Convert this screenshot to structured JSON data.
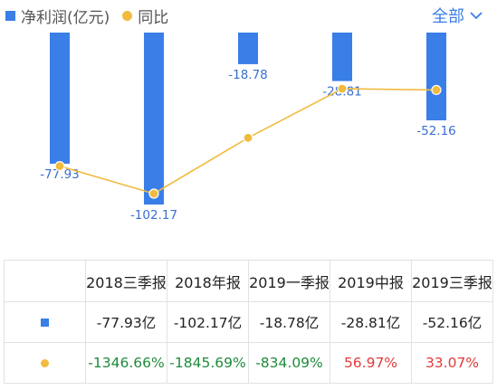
{
  "legend": {
    "net_profit": "净利润(亿元)",
    "yoy": "同比"
  },
  "filter": {
    "label": "全部"
  },
  "colors": {
    "bar": "#3a7ee8",
    "line": "#f1bb3f",
    "negative": "#1f8a3a",
    "positive": "#e03b3b"
  },
  "chart_data": {
    "type": "bar",
    "categories": [
      "2018三季报",
      "2018年报",
      "2019一季报",
      "2019中报",
      "2019三季报"
    ],
    "series": [
      {
        "name": "净利润(亿元)",
        "type": "bar",
        "values": [
          -77.93,
          -102.17,
          -18.78,
          -28.81,
          -52.16
        ]
      },
      {
        "name": "同比",
        "type": "line",
        "values": [
          -1346.66,
          -1845.69,
          -834.09,
          56.97,
          33.07
        ]
      }
    ],
    "bar_labels": [
      "-77.93",
      "-102.17",
      "-18.78",
      "-28.81",
      "-52.16"
    ]
  },
  "table": {
    "headers": [
      "2018三季报",
      "2018年报",
      "2019一季报",
      "2019中报",
      "2019三季报"
    ],
    "profit_row": [
      "-77.93亿",
      "-102.17亿",
      "-18.78亿",
      "-28.81亿",
      "-52.16亿"
    ],
    "yoy_row": [
      "-1346.66%",
      "-1845.69%",
      "-834.09%",
      "56.97%",
      "33.07%"
    ]
  }
}
